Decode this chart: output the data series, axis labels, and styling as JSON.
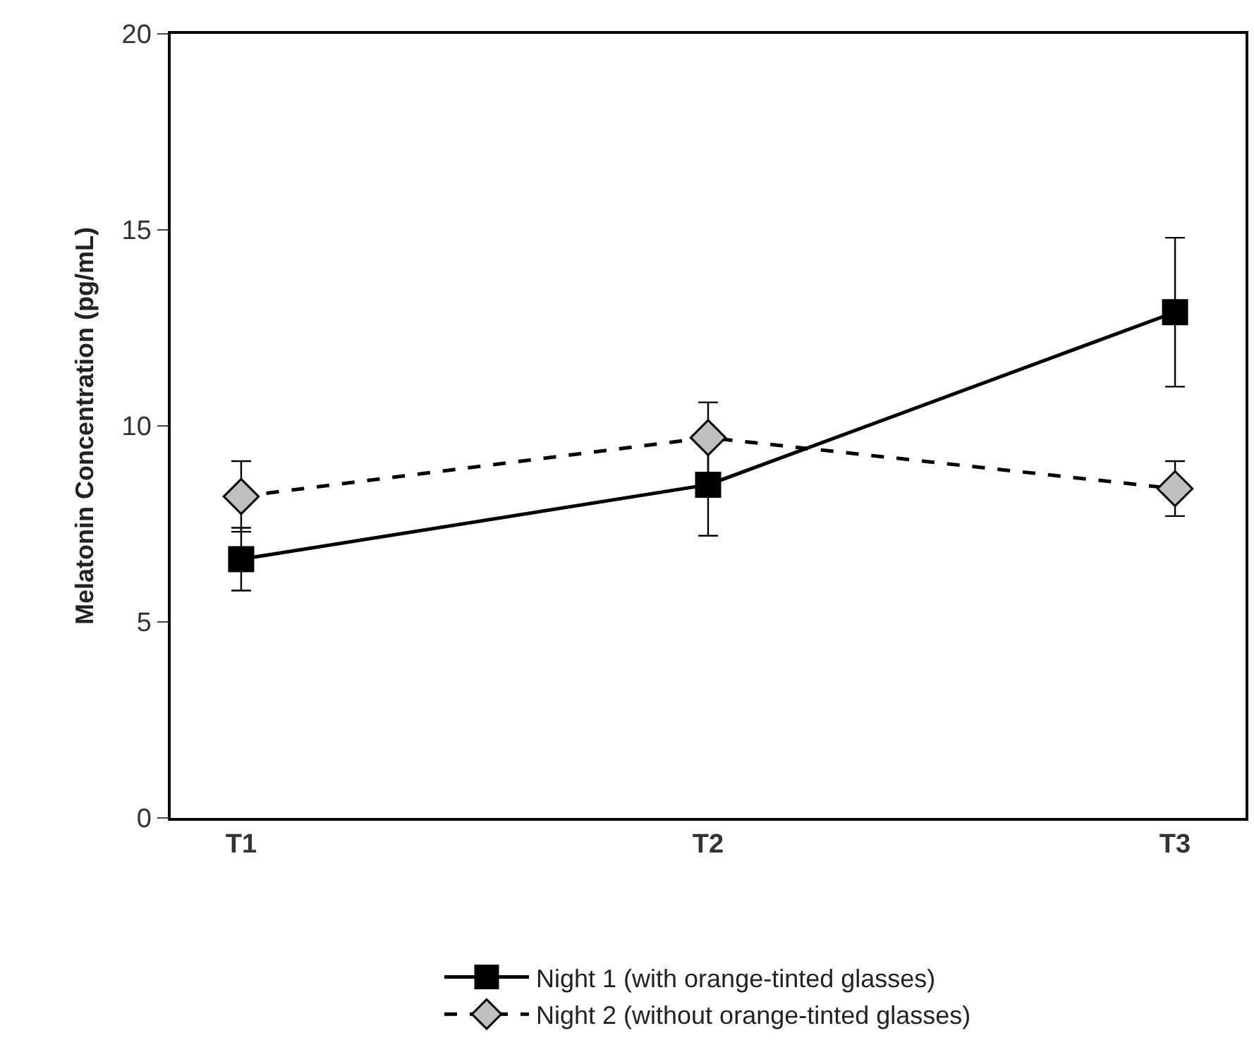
{
  "chart_data": {
    "type": "line",
    "ylabel": "Melatonin Concentration (pg/mL)",
    "categories": [
      "T1",
      "T2",
      "T3"
    ],
    "series": [
      {
        "name": "Night 1 (with orange-tinted glasses)",
        "color": "#000000",
        "marker": "square",
        "line_style": "solid",
        "values": [
          6.6,
          8.5,
          12.9
        ],
        "errors": [
          0.8,
          1.3,
          1.9
        ],
        "colors": [
          "#000000",
          "#000000",
          "#000000"
        ]
      },
      {
        "name": "Night 2 (without orange-tinted glasses)",
        "color": "#000000",
        "marker": "diamond",
        "line_style": "dashed",
        "values": [
          8.2,
          9.7,
          8.4
        ],
        "errors": [
          0.9,
          0.9,
          0.7
        ],
        "colors": [
          "#bfbfbf",
          "#bfbfbf",
          "#bfbfbf"
        ]
      }
    ],
    "ylim": [
      0,
      20
    ],
    "yticks": [
      0,
      5,
      10,
      15,
      20
    ],
    "legend": "bottom"
  }
}
